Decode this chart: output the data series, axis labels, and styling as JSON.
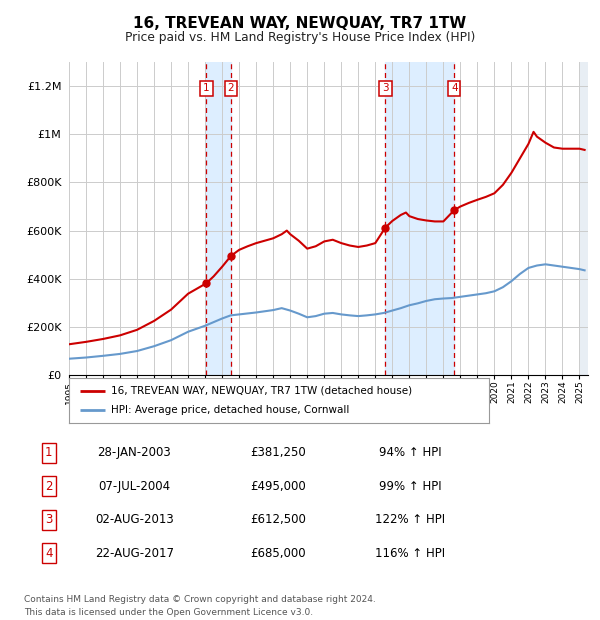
{
  "title": "16, TREVEAN WAY, NEWQUAY, TR7 1TW",
  "subtitle": "Price paid vs. HM Land Registry's House Price Index (HPI)",
  "ylabel_ticks": [
    "£0",
    "£200K",
    "£400K",
    "£600K",
    "£800K",
    "£1M",
    "£1.2M"
  ],
  "ytick_values": [
    0,
    200000,
    400000,
    600000,
    800000,
    1000000,
    1200000
  ],
  "ylim": [
    0,
    1300000
  ],
  "xlim_start": 1995.0,
  "xlim_end": 2025.5,
  "transactions": [
    {
      "num": 1,
      "date": "28-JAN-2003",
      "price": 381250,
      "pct": "94%",
      "year": 2003.07
    },
    {
      "num": 2,
      "date": "07-JUL-2004",
      "price": 495000,
      "pct": "99%",
      "year": 2004.52
    },
    {
      "num": 3,
      "date": "02-AUG-2013",
      "price": 612500,
      "pct": "122%",
      "year": 2013.59
    },
    {
      "num": 4,
      "date": "22-AUG-2017",
      "price": 685000,
      "pct": "116%",
      "year": 2017.64
    }
  ],
  "legend_line1": "16, TREVEAN WAY, NEWQUAY, TR7 1TW (detached house)",
  "legend_line2": "HPI: Average price, detached house, Cornwall",
  "footer": "Contains HM Land Registry data © Crown copyright and database right 2024.\nThis data is licensed under the Open Government Licence v3.0.",
  "line_color_red": "#cc0000",
  "line_color_blue": "#6699cc",
  "shade_color": "#ddeeff",
  "background_color": "#ffffff",
  "grid_color": "#cccccc",
  "hpi_points": [
    [
      1995.0,
      68000
    ],
    [
      1996.0,
      73000
    ],
    [
      1997.0,
      80000
    ],
    [
      1998.0,
      88000
    ],
    [
      1999.0,
      100000
    ],
    [
      2000.0,
      120000
    ],
    [
      2001.0,
      145000
    ],
    [
      2002.0,
      180000
    ],
    [
      2003.0,
      205000
    ],
    [
      2003.5,
      220000
    ],
    [
      2004.0,
      235000
    ],
    [
      2004.5,
      248000
    ],
    [
      2005.0,
      252000
    ],
    [
      2006.0,
      260000
    ],
    [
      2007.0,
      270000
    ],
    [
      2007.5,
      278000
    ],
    [
      2008.0,
      268000
    ],
    [
      2008.5,
      255000
    ],
    [
      2009.0,
      240000
    ],
    [
      2009.5,
      245000
    ],
    [
      2010.0,
      255000
    ],
    [
      2010.5,
      258000
    ],
    [
      2011.0,
      252000
    ],
    [
      2011.5,
      248000
    ],
    [
      2012.0,
      245000
    ],
    [
      2012.5,
      248000
    ],
    [
      2013.0,
      252000
    ],
    [
      2013.5,
      258000
    ],
    [
      2014.0,
      268000
    ],
    [
      2014.5,
      278000
    ],
    [
      2015.0,
      290000
    ],
    [
      2015.5,
      298000
    ],
    [
      2016.0,
      308000
    ],
    [
      2016.5,
      315000
    ],
    [
      2017.0,
      318000
    ],
    [
      2017.5,
      320000
    ],
    [
      2018.0,
      325000
    ],
    [
      2018.5,
      330000
    ],
    [
      2019.0,
      335000
    ],
    [
      2019.5,
      340000
    ],
    [
      2020.0,
      348000
    ],
    [
      2020.5,
      365000
    ],
    [
      2021.0,
      390000
    ],
    [
      2021.5,
      420000
    ],
    [
      2022.0,
      445000
    ],
    [
      2022.5,
      455000
    ],
    [
      2023.0,
      460000
    ],
    [
      2023.5,
      455000
    ],
    [
      2024.0,
      450000
    ],
    [
      2024.5,
      445000
    ],
    [
      2025.0,
      440000
    ],
    [
      2025.3,
      435000
    ]
  ],
  "red_points": [
    [
      1995.0,
      128000
    ],
    [
      1996.0,
      138000
    ],
    [
      1997.0,
      150000
    ],
    [
      1998.0,
      165000
    ],
    [
      1999.0,
      188000
    ],
    [
      2000.0,
      225000
    ],
    [
      2001.0,
      272000
    ],
    [
      2002.0,
      338000
    ],
    [
      2003.07,
      381250
    ],
    [
      2003.5,
      410000
    ],
    [
      2004.0,
      450000
    ],
    [
      2004.52,
      495000
    ],
    [
      2005.0,
      520000
    ],
    [
      2005.5,
      535000
    ],
    [
      2006.0,
      548000
    ],
    [
      2006.5,
      558000
    ],
    [
      2007.0,
      568000
    ],
    [
      2007.5,
      585000
    ],
    [
      2007.8,
      600000
    ],
    [
      2008.0,
      585000
    ],
    [
      2008.5,
      558000
    ],
    [
      2009.0,
      525000
    ],
    [
      2009.5,
      535000
    ],
    [
      2010.0,
      555000
    ],
    [
      2010.5,
      562000
    ],
    [
      2011.0,
      548000
    ],
    [
      2011.5,
      538000
    ],
    [
      2012.0,
      532000
    ],
    [
      2012.5,
      538000
    ],
    [
      2013.0,
      548000
    ],
    [
      2013.59,
      612500
    ],
    [
      2014.0,
      640000
    ],
    [
      2014.5,
      665000
    ],
    [
      2014.8,
      675000
    ],
    [
      2015.0,
      660000
    ],
    [
      2015.5,
      648000
    ],
    [
      2016.0,
      642000
    ],
    [
      2016.5,
      638000
    ],
    [
      2017.0,
      638000
    ],
    [
      2017.64,
      685000
    ],
    [
      2018.0,
      700000
    ],
    [
      2018.5,
      715000
    ],
    [
      2019.0,
      728000
    ],
    [
      2019.5,
      740000
    ],
    [
      2020.0,
      755000
    ],
    [
      2020.5,
      790000
    ],
    [
      2021.0,
      840000
    ],
    [
      2021.5,
      900000
    ],
    [
      2022.0,
      960000
    ],
    [
      2022.3,
      1010000
    ],
    [
      2022.5,
      990000
    ],
    [
      2023.0,
      965000
    ],
    [
      2023.5,
      945000
    ],
    [
      2024.0,
      940000
    ],
    [
      2025.0,
      940000
    ],
    [
      2025.3,
      935000
    ]
  ]
}
